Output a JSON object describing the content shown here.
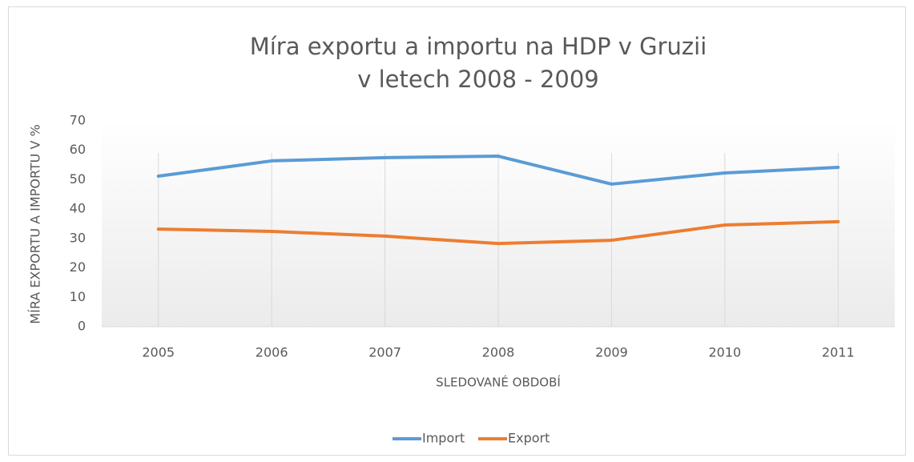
{
  "chart_data": {
    "type": "line",
    "title": [
      "Míra exportu a importu na HDP v Gruzii",
      "v letech 2008 - 2009"
    ],
    "x_label": "SLEDOVANÉ OBDOBÍ",
    "y_label": "MÍRA EXPORTU A IMPORTU V %",
    "categories": [
      "2005",
      "2006",
      "2007",
      "2008",
      "2009",
      "2010",
      "2011"
    ],
    "series": [
      {
        "name": "Import",
        "color": "#5b9bd5",
        "values": [
          51.2,
          56.4,
          57.5,
          58.0,
          48.5,
          52.3,
          54.2
        ]
      },
      {
        "name": "Export",
        "color": "#ed7d31",
        "values": [
          33.2,
          32.4,
          30.8,
          28.3,
          29.4,
          34.6,
          35.7
        ]
      }
    ],
    "ylim": [
      0,
      70
    ],
    "yticks": [
      0,
      10,
      20,
      30,
      40,
      50,
      60,
      70
    ],
    "legend": "bottom"
  }
}
